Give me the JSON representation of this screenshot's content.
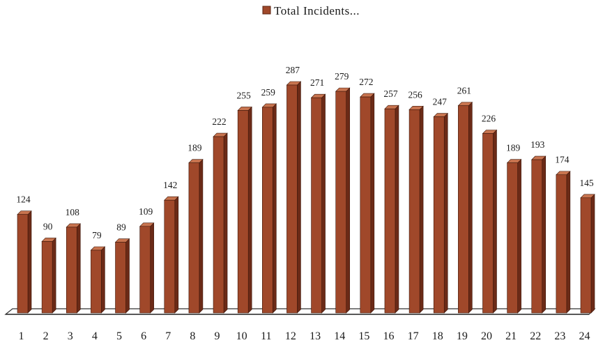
{
  "legend": {
    "label": "Total Incidents..."
  },
  "colors": {
    "bar_front": "#a0482a",
    "bar_side": "#6b2a17",
    "bar_top": "#c8744f",
    "floor": "#ffffff",
    "floor_stroke": "#333333"
  },
  "chart_data": {
    "type": "bar",
    "title": "",
    "xlabel": "",
    "ylabel": "",
    "legend_position": "top-center",
    "grid": false,
    "ylim": [
      0,
      300
    ],
    "categories": [
      "1",
      "2",
      "3",
      "4",
      "5",
      "6",
      "7",
      "8",
      "9",
      "10",
      "11",
      "12",
      "13",
      "14",
      "15",
      "16",
      "17",
      "18",
      "19",
      "20",
      "21",
      "22",
      "23",
      "24"
    ],
    "series": [
      {
        "name": "Total Incidents...",
        "values": [
          124,
          90,
          108,
          79,
          89,
          109,
          142,
          189,
          222,
          255,
          259,
          287,
          271,
          279,
          272,
          257,
          256,
          247,
          261,
          226,
          189,
          193,
          174,
          145
        ]
      }
    ]
  }
}
